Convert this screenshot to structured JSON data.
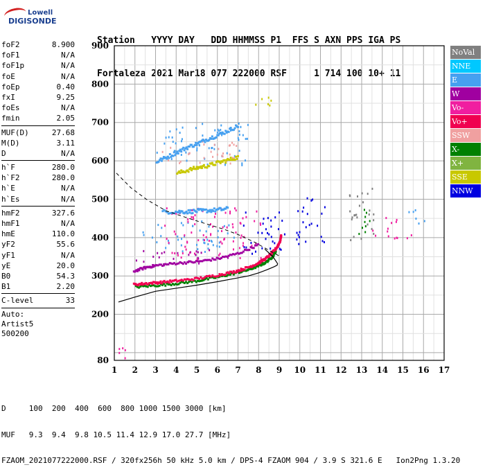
{
  "header": {
    "line1": "Station   YYYY DAY   DDD HHMMSS P1  FFS S AXN PPS IGA PS",
    "line2": "Fortaleza 2021 Mar18 077 222000 RSF     1 714 100 10+ 11"
  },
  "logo": {
    "top": "Lowell",
    "bottom": "DIGISONDE"
  },
  "params_groups": [
    [
      [
        "foF2",
        "8.900"
      ],
      [
        "foF1",
        "N/A"
      ],
      [
        "foF1p",
        "N/A"
      ],
      [
        "foE",
        "N/A"
      ],
      [
        "foEp",
        "0.40"
      ],
      [
        "fxI",
        "9.25"
      ],
      [
        "foEs",
        "N/A"
      ],
      [
        "fmin",
        "2.05"
      ]
    ],
    [
      [
        "MUF(D)",
        "27.68"
      ],
      [
        "M(D)",
        "3.11"
      ],
      [
        "D",
        "N/A"
      ]
    ],
    [
      [
        "h`F",
        "280.0"
      ],
      [
        "h`F2",
        "280.0"
      ],
      [
        "h`E",
        "N/A"
      ],
      [
        "h`Es",
        "N/A"
      ]
    ],
    [
      [
        "hmF2",
        "327.6"
      ],
      [
        "hmF1",
        "N/A"
      ],
      [
        "hmE",
        "110.0"
      ],
      [
        "yF2",
        "55.6"
      ],
      [
        "yF1",
        "N/A"
      ],
      [
        "yE",
        "20.0"
      ],
      [
        "B0",
        "54.3"
      ],
      [
        "B1",
        "2.20"
      ]
    ],
    [
      [
        "C-level",
        "33"
      ]
    ]
  ],
  "auto": [
    "Auto:",
    "Artist5",
    "500200"
  ],
  "bottom": {
    "d_line": "D     100  200  400  600  800 1000 1500 3000 [km]",
    "muf_line": "MUF   9.3  9.4  9.8 10.5 11.4 12.9 17.0 27.7 [MHz]",
    "file_line": "FZAOM_2021077222000.RSF / 320fx256h 50 kHz 5.0 km / DPS-4 FZAOM 904 / 3.9 S 321.6 E   Ion2Png 1.3.20"
  },
  "legend": [
    {
      "label": "NoVal",
      "color": "#808080"
    },
    {
      "label": "NNE",
      "color": "#00c8ff"
    },
    {
      "label": "E",
      "color": "#46a0f0"
    },
    {
      "label": "W",
      "color": "#a000a0"
    },
    {
      "label": "Vo-",
      "color": "#f01ea0"
    },
    {
      "label": "Vo+",
      "color": "#f00050"
    },
    {
      "label": "SSW",
      "color": "#f0a0a0"
    },
    {
      "label": "X-",
      "color": "#008000"
    },
    {
      "label": "X+",
      "color": "#80b440"
    },
    {
      "label": "SSE",
      "color": "#c8c800"
    },
    {
      "label": "NNW",
      "color": "#0000e0"
    }
  ],
  "chart_data": {
    "type": "scatter",
    "title": "",
    "xlabel": "",
    "ylabel": "",
    "xlim": [
      1,
      17
    ],
    "ylim": [
      80,
      900
    ],
    "x_ticks": [
      1,
      2,
      3,
      4,
      5,
      6,
      7,
      8,
      9,
      10,
      11,
      12,
      13,
      14,
      15,
      16,
      17
    ],
    "y_ticks": [
      80,
      200,
      300,
      400,
      500,
      600,
      700,
      800,
      900
    ],
    "grid": true,
    "x_minor_step": 0.5,
    "y_minor_step": 50,
    "profile": {
      "x": [
        1.2,
        2.0,
        3.0,
        4.0,
        5.0,
        6.0,
        6.8,
        7.5,
        8.0,
        8.4,
        8.75,
        8.9,
        8.92,
        8.7,
        8.3
      ],
      "y": [
        232,
        245,
        260,
        268,
        276,
        285,
        293,
        300,
        308,
        316,
        324,
        328,
        332,
        350,
        370
      ]
    },
    "dashed": {
      "x": [
        1.1,
        1.8,
        2.6,
        3.5,
        4.5,
        5.5,
        6.3,
        7.0,
        7.8,
        8.4,
        9.0
      ],
      "y": [
        568,
        530,
        498,
        470,
        452,
        435,
        422,
        408,
        388,
        370,
        352
      ]
    },
    "o_trace": {
      "x": [
        1.9,
        2.5,
        3.2,
        4.0,
        5.0,
        6.0,
        6.8,
        7.4,
        7.9,
        8.3,
        8.6,
        8.85,
        9.0,
        9.05
      ],
      "y": [
        280,
        283,
        286,
        290,
        296,
        305,
        314,
        324,
        335,
        348,
        362,
        378,
        394,
        410
      ]
    },
    "x_trace": {
      "x": [
        2.0,
        3.0,
        4.0,
        5.0,
        6.0,
        6.8,
        7.4,
        7.9,
        8.3,
        8.6,
        8.8
      ],
      "y": [
        274,
        278,
        283,
        290,
        300,
        310,
        318,
        328,
        338,
        352,
        368
      ]
    },
    "upper_trace": {
      "x": [
        1.9,
        2.5,
        3.0,
        4.0,
        5.0,
        6.0,
        7.0,
        8.0
      ],
      "y": [
        315,
        325,
        330,
        336,
        340,
        348,
        362,
        385
      ]
    },
    "spread_clusters": [
      {
        "x": [
          2.3,
          6.9
        ],
        "y": [
          365,
          445
        ],
        "color": "#46a0f0"
      },
      {
        "x": [
          2.0,
          6.5
        ],
        "y": [
          330,
          370
        ],
        "color": "#a000a0"
      },
      {
        "x": [
          3.3,
          8.2
        ],
        "y": [
          345,
          480
        ],
        "color": "#f01ea0"
      },
      {
        "x": [
          7.2,
          8.6
        ],
        "y": [
          360,
          470
        ],
        "color": "#0000e0"
      },
      {
        "x": [
          8.4,
          9.3
        ],
        "y": [
          365,
          470
        ],
        "color": "#0000e0"
      },
      {
        "x": [
          9.8,
          11.3
        ],
        "y": [
          380,
          510
        ],
        "color": "#0000e0"
      },
      {
        "x": [
          12.2,
          13.6
        ],
        "y": [
          395,
          535
        ],
        "color": "#808080"
      },
      {
        "x": [
          12.4,
          13.4
        ],
        "y": [
          410,
          480
        ],
        "color": "#008000"
      },
      {
        "x": [
          13.5,
          15.5
        ],
        "y": [
          400,
          455
        ],
        "color": "#f01ea0"
      },
      {
        "x": [
          15.2,
          16.1
        ],
        "y": [
          430,
          480
        ],
        "color": "#46a0f0"
      },
      {
        "x": [
          3.0,
          7.5
        ],
        "y": [
          590,
          700
        ],
        "color": "#46a0f0"
      },
      {
        "x": [
          3.3,
          7.0
        ],
        "y": [
          595,
          660
        ],
        "color": "#f0a0a0"
      },
      {
        "x": [
          1.1,
          2.1
        ],
        "y": [
          82,
          120
        ],
        "color": "#f01ea0"
      },
      {
        "x": [
          7.8,
          9.1
        ],
        "y": [
          740,
          780
        ],
        "color": "#c8c800"
      }
    ],
    "lines_multi": [
      {
        "x": [
          3.0,
          3.5,
          4.0,
          4.5,
          5.0,
          5.5,
          6.0,
          6.5,
          7.0
        ],
        "y": [
          600,
          612,
          625,
          638,
          648,
          660,
          670,
          682,
          695
        ],
        "color": "#46a0f0"
      },
      {
        "x": [
          4.0,
          4.5,
          5.0,
          5.5,
          6.0,
          6.5,
          7.0
        ],
        "y": [
          570,
          578,
          585,
          590,
          598,
          605,
          613
        ],
        "color": "#c8c800"
      },
      {
        "x": [
          3.3,
          4.0,
          4.5,
          5.0,
          5.5,
          6.0,
          6.5
        ],
        "y": [
          470,
          470,
          470,
          472,
          473,
          475,
          478
        ],
        "color": "#46a0f0"
      }
    ]
  }
}
